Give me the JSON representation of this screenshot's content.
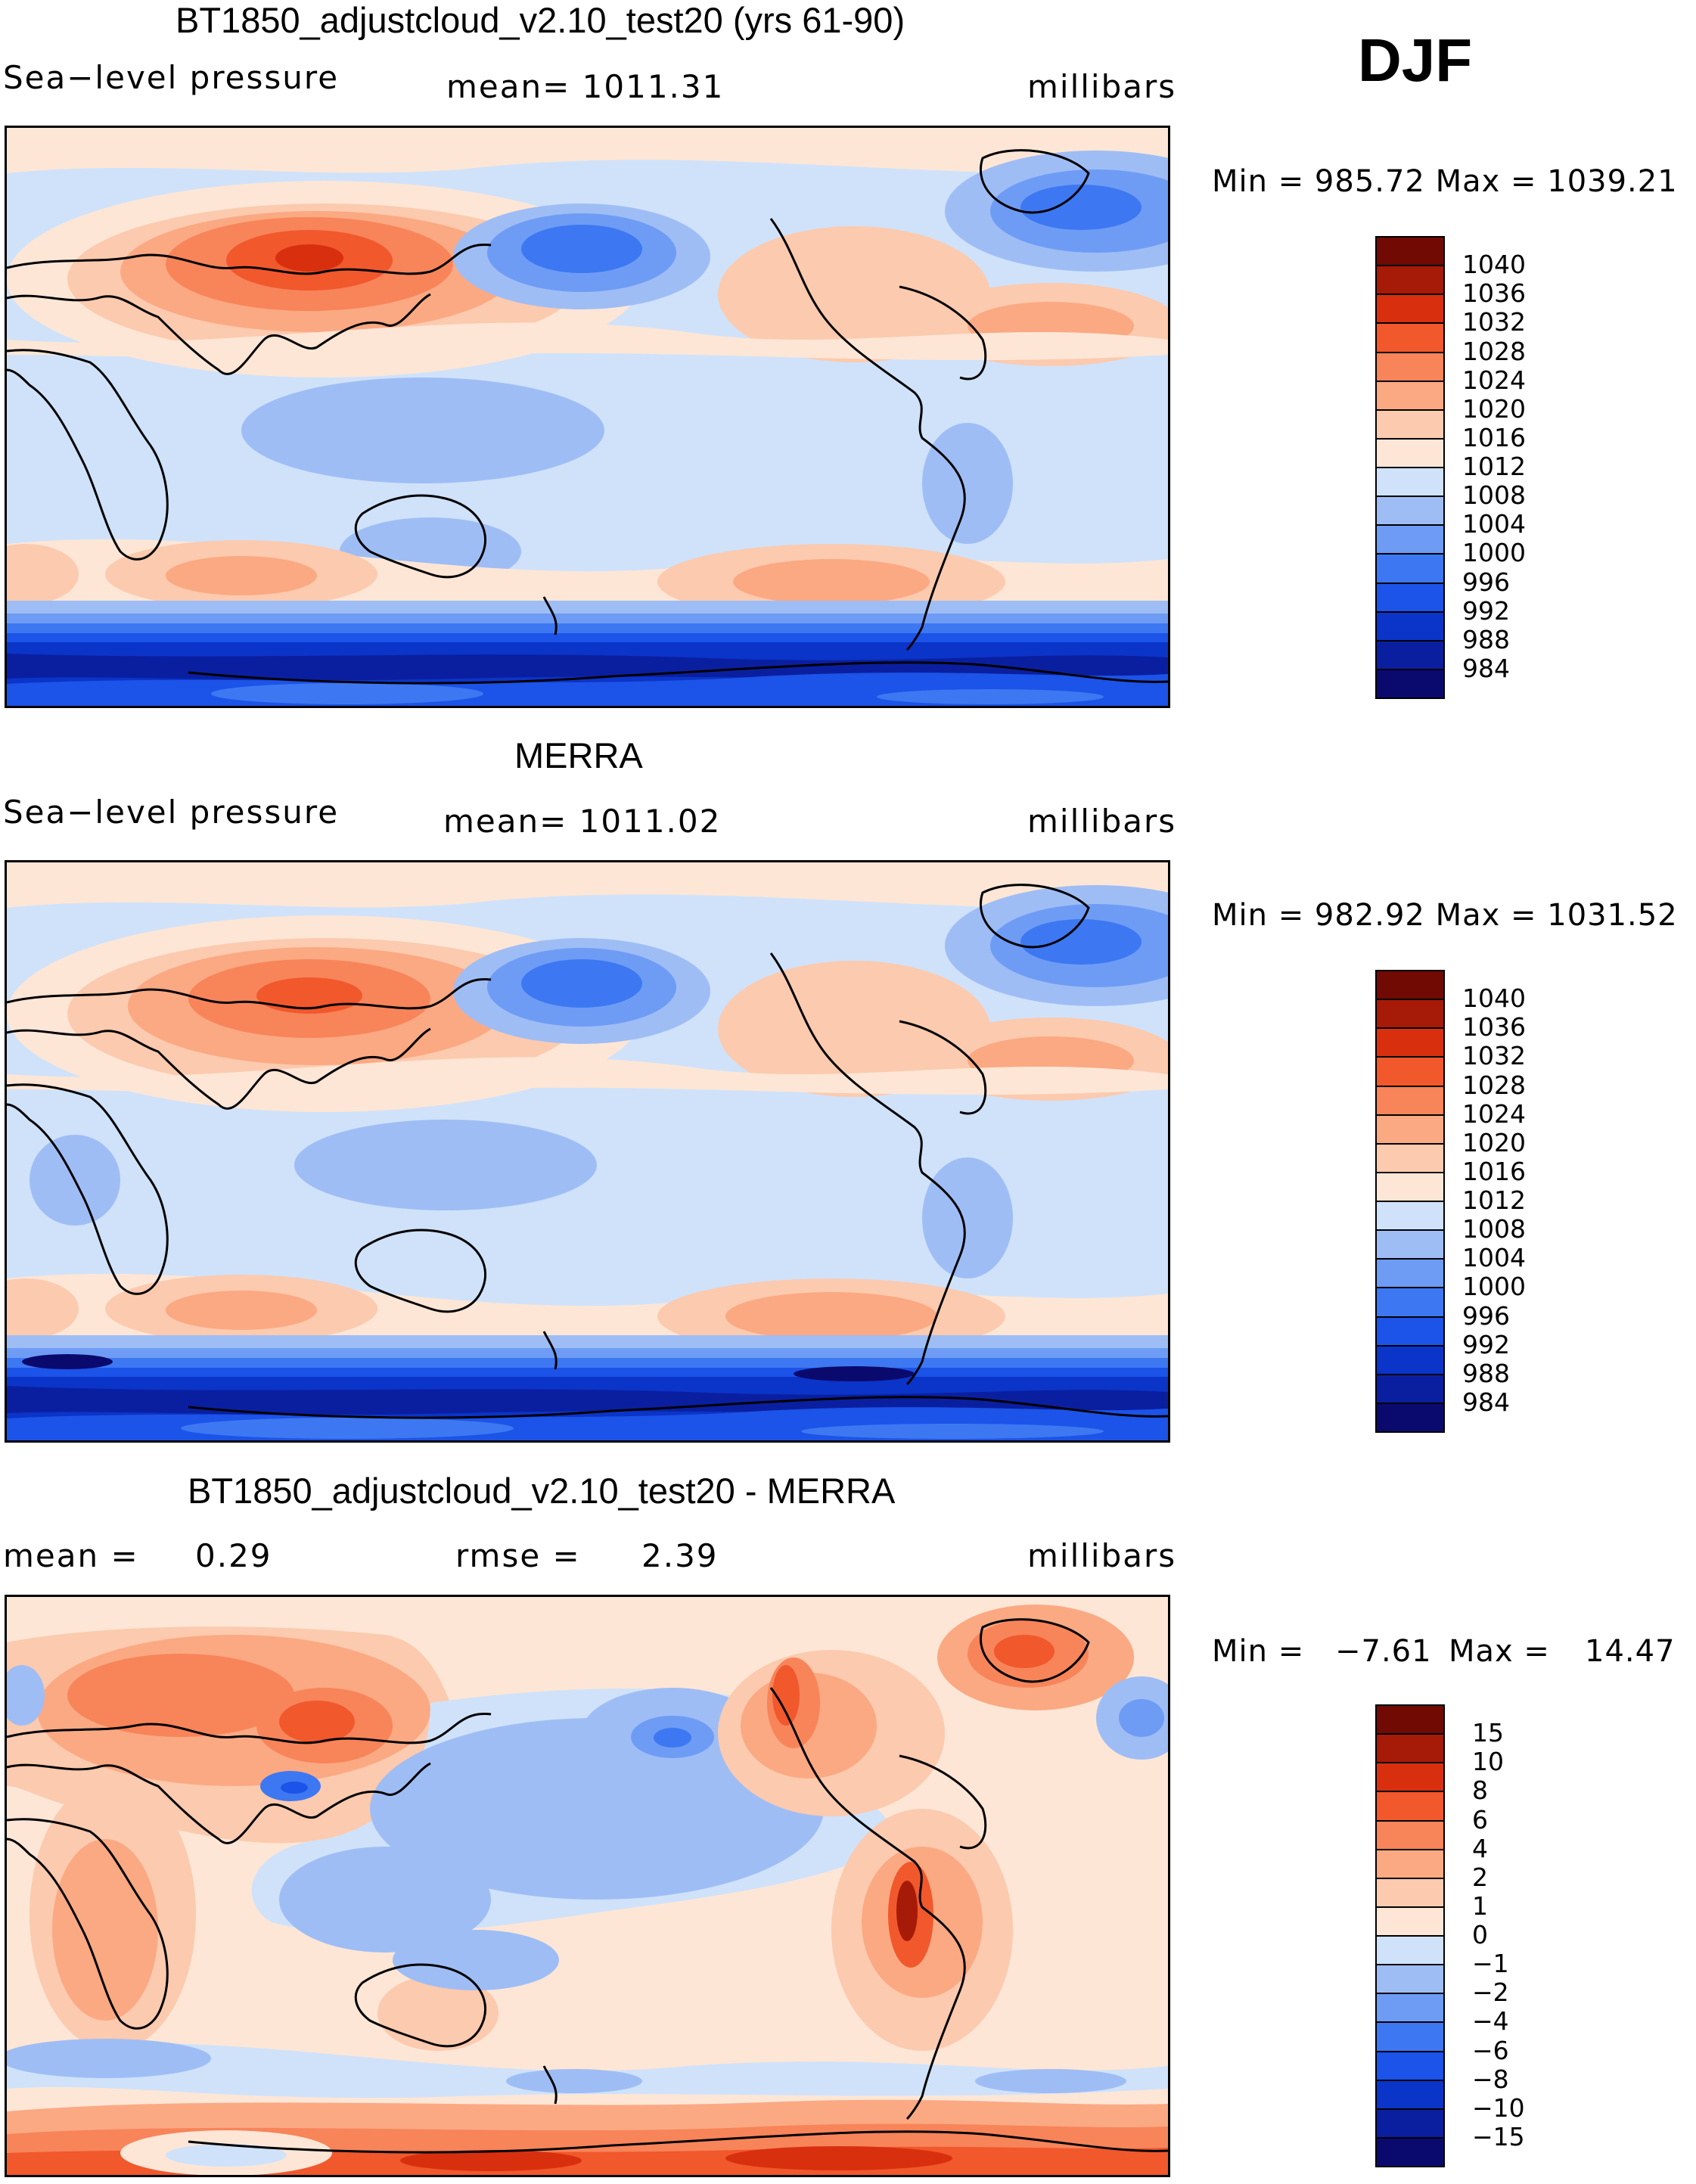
{
  "season": "DJF",
  "colors": {
    "pressure_palette": [
      "#0a0a6e",
      "#0a1fa0",
      "#0b34c8",
      "#1c53e8",
      "#3d78f2",
      "#6e9cf5",
      "#9fbdf5",
      "#cfe2fa",
      "#fde6d6",
      "#fccaae",
      "#fba983",
      "#f8845a",
      "#f1582c",
      "#d8300f",
      "#a61a08",
      "#700a03"
    ],
    "diff_palette": [
      "#0a0a6e",
      "#0a1fa0",
      "#0b34c8",
      "#1c53e8",
      "#3d78f2",
      "#6e9cf5",
      "#9fbdf5",
      "#cfe2fa",
      "#fde6d6",
      "#fccaae",
      "#fba983",
      "#f8845a",
      "#f1582c",
      "#d8300f",
      "#a61a08",
      "#700a03"
    ]
  },
  "panels": [
    {
      "title": "BT1850_adjustcloud_v2.10_test20 (yrs 61-90)",
      "left_label": "Sea−level pressure",
      "center_label": "mean=  1011.31",
      "units": "millibars",
      "minmax": "Min  =  985.72  Max  =  1039.21",
      "legend": [
        "1040",
        "1036",
        "1032",
        "1028",
        "1024",
        "1020",
        "1016",
        "1012",
        "1008",
        "1004",
        "1000",
        "996",
        "992",
        "988",
        "984"
      ]
    },
    {
      "title": "MERRA",
      "left_label": "Sea−level pressure",
      "center_label": "mean=  1011.02",
      "units": "millibars",
      "minmax": "Min  =  982.92  Max  =  1031.52",
      "legend": [
        "1040",
        "1036",
        "1032",
        "1028",
        "1024",
        "1020",
        "1016",
        "1012",
        "1008",
        "1004",
        "1000",
        "996",
        "992",
        "988",
        "984"
      ]
    },
    {
      "title": "BT1850_adjustcloud_v2.10_test20 - MERRA",
      "left_label": "mean  =",
      "left_value": "0.29",
      "center_label": "rmse  =",
      "center_value": "2.39",
      "units": "millibars",
      "minmax_min_label": "Min  =",
      "minmax_min": "−7.61",
      "minmax_max_label": "Max  =",
      "minmax_max": "14.47",
      "legend": [
        "15",
        "10",
        "8",
        "6",
        "4",
        "2",
        "1",
        "0",
        "−1",
        "−2",
        "−4",
        "−6",
        "−8",
        "−10",
        "−15"
      ]
    }
  ]
}
